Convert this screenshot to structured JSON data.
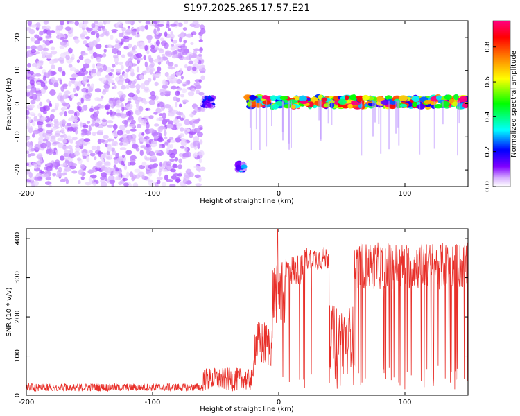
{
  "chart_data": [
    {
      "type": "heatmap",
      "title": "S197.2025.265.17.57.E21",
      "xlabel": "Height of straight line (km)",
      "ylabel": "Frequency (Hz)",
      "xlim": [
        -200,
        150
      ],
      "ylim": [
        -25,
        25
      ],
      "x_ticks": [
        -200,
        -100,
        0,
        100
      ],
      "y_ticks": [
        -20,
        -10,
        0,
        10,
        20
      ],
      "colorbar": {
        "label": "Normalized spectral amplitude",
        "range": [
          0,
          0.95
        ],
        "ticks": [
          "0.0",
          "0.2",
          "0.4",
          "0.6",
          "0.8"
        ],
        "colormap": [
          "#ffffff",
          "#d9b3ff",
          "#8000ff",
          "#0000ff",
          "#00ffff",
          "#00ff00",
          "#ffff00",
          "#ff8000",
          "#ff0000",
          "#ff0080"
        ]
      },
      "regions": [
        {
          "name": "noise",
          "x": [
            -200,
            -60
          ],
          "freq": [
            -25,
            25
          ],
          "amplitude": 0.15
        },
        {
          "name": "early-burst",
          "x": [
            -60,
            -52
          ],
          "freq": [
            -1,
            2
          ],
          "amplitude": 0.3
        },
        {
          "name": "low-freq-patch",
          "x": [
            -33,
            -27
          ],
          "freq": [
            -20,
            -18
          ],
          "amplitude": 0.35
        },
        {
          "name": "carrier",
          "x": [
            -25,
            150
          ],
          "freq": [
            -1,
            2
          ],
          "amplitude": 0.9
        }
      ]
    },
    {
      "type": "line",
      "xlabel": "Height of straight line (km)",
      "ylabel": "SNR (10 * v/v)",
      "xlim": [
        -200,
        150
      ],
      "ylim": [
        0,
        425
      ],
      "x_ticks": [
        -200,
        -100,
        0,
        100
      ],
      "y_ticks": [
        0,
        100,
        200,
        300,
        400
      ],
      "series": [
        {
          "name": "SNR",
          "color": "#e8302a"
        }
      ],
      "segments": [
        {
          "x": [
            -200,
            -60
          ],
          "level": 20,
          "spread": 10
        },
        {
          "x": [
            -60,
            -20
          ],
          "level": 40,
          "spread": 30
        },
        {
          "x": [
            -20,
            -5
          ],
          "level": 130,
          "spread": 60
        },
        {
          "x": [
            -5,
            5
          ],
          "level": 260,
          "spread": 80
        },
        {
          "x": [
            5,
            20
          ],
          "level": 320,
          "spread": 40
        },
        {
          "x": [
            20,
            40
          ],
          "level": 350,
          "spread": 30
        },
        {
          "x": [
            40,
            60
          ],
          "level": 150,
          "spread": 80
        },
        {
          "x": [
            60,
            150
          ],
          "level": 330,
          "spread": 60
        }
      ],
      "peak": {
        "x": -1,
        "y": 425
      }
    }
  ]
}
